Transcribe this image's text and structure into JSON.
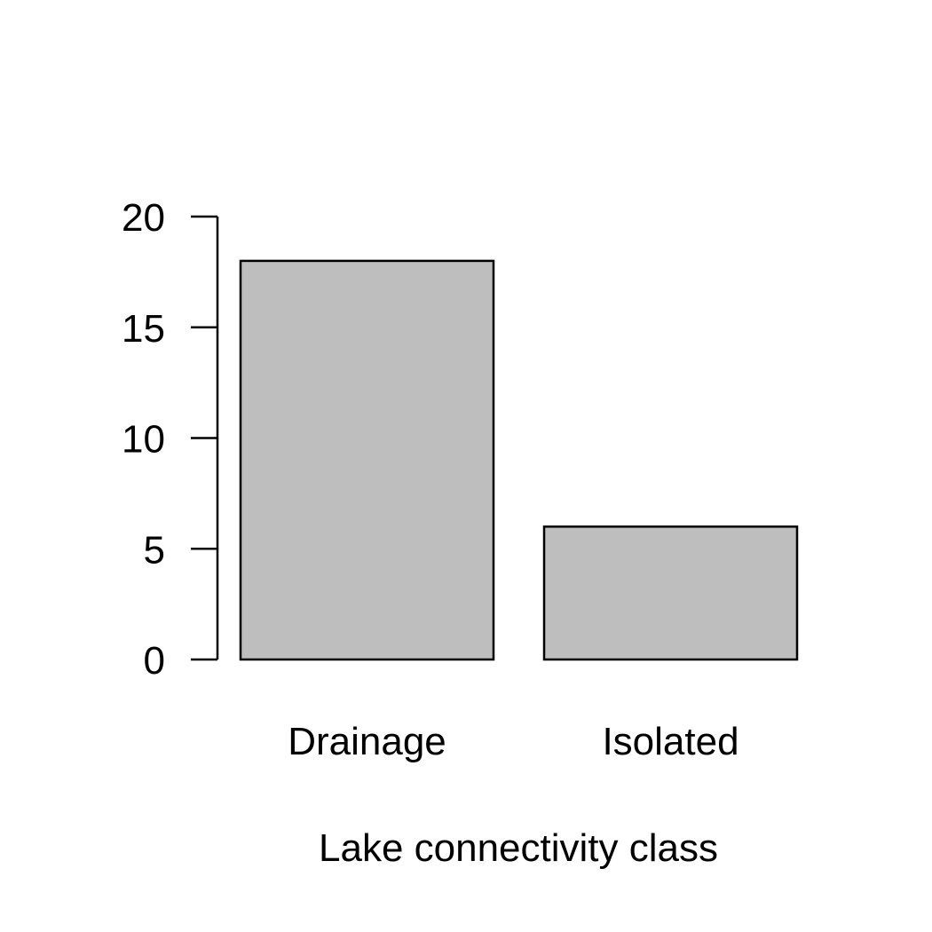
{
  "chart_data": {
    "type": "bar",
    "title": "",
    "xlabel": "Lake connectivity class",
    "ylabel": "",
    "categories": [
      "Drainage",
      "Isolated"
    ],
    "values": [
      18,
      6
    ],
    "ylim": [
      0,
      20
    ],
    "yticks": [
      0,
      5,
      10,
      15,
      20
    ],
    "ytick_labels": [
      "0",
      "5",
      "10",
      "15",
      "20"
    ],
    "grid": false,
    "legend": "none",
    "bar_color": "#bebebe",
    "edge_color": "#000000"
  }
}
